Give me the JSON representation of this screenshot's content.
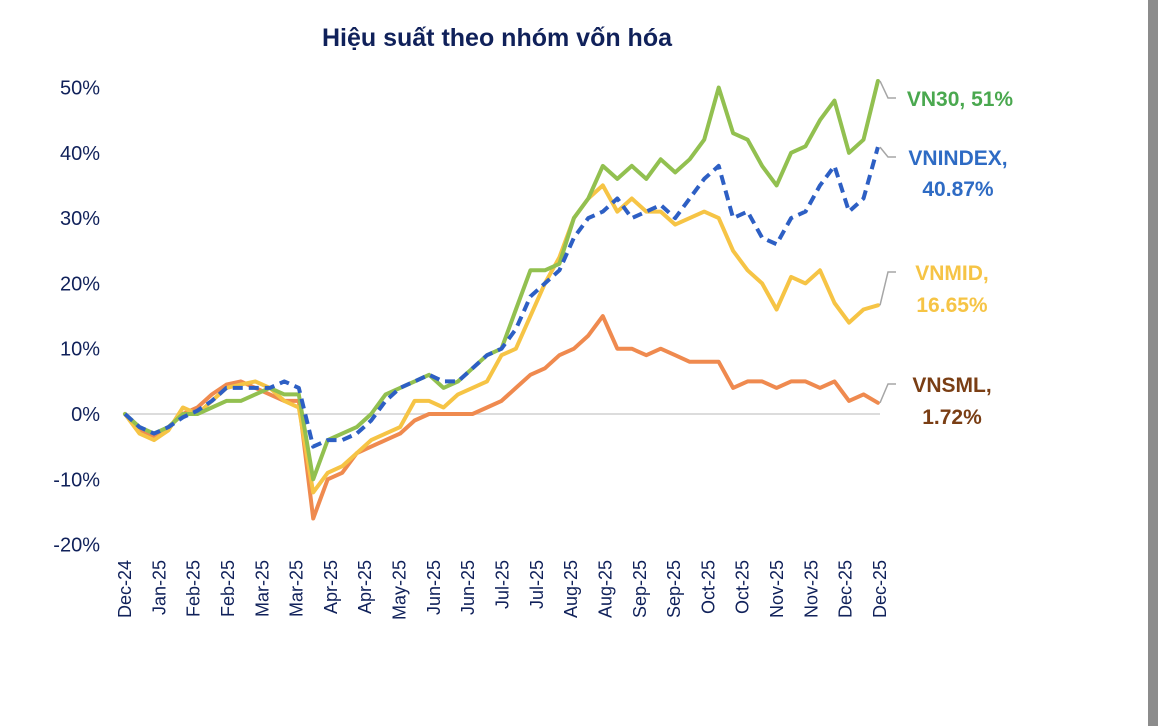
{
  "chart_data": {
    "type": "line",
    "title": "Hiệu suất theo nhóm vốn hóa",
    "xlabel": "",
    "ylabel": "",
    "ylim": [
      -20,
      50
    ],
    "y_ticks": [
      "50%",
      "40%",
      "30%",
      "20%",
      "10%",
      "0%",
      "-10%",
      "-20%"
    ],
    "y_tick_values": [
      50,
      40,
      30,
      20,
      10,
      0,
      -10,
      -20
    ],
    "x_tick_labels": [
      "Dec-24",
      "Jan-25",
      "Feb-25",
      "Feb-25",
      "Mar-25",
      "Mar-25",
      "Apr-25",
      "Apr-25",
      "May-25",
      "Jun-25",
      "Jun-25",
      "Jul-25",
      "Jul-25",
      "Aug-25",
      "Aug-25",
      "Sep-25",
      "Sep-25",
      "Oct-25",
      "Oct-25",
      "Nov-25",
      "Nov-25",
      "Dec-25",
      "Dec-25"
    ],
    "x_range": [
      "2024-12-31",
      "2025-12-31"
    ],
    "grid": false,
    "zero_line": true,
    "x": [
      "2024-12-31",
      "2025-01-07",
      "2025-01-14",
      "2025-01-21",
      "2025-01-28",
      "2025-02-04",
      "2025-02-11",
      "2025-02-18",
      "2025-02-25",
      "2025-03-04",
      "2025-03-11",
      "2025-03-18",
      "2025-03-25",
      "2025-04-01",
      "2025-04-08",
      "2025-04-15",
      "2025-04-22",
      "2025-04-29",
      "2025-05-06",
      "2025-05-13",
      "2025-05-20",
      "2025-05-27",
      "2025-06-03",
      "2025-06-10",
      "2025-06-17",
      "2025-06-24",
      "2025-07-01",
      "2025-07-08",
      "2025-07-15",
      "2025-07-22",
      "2025-07-29",
      "2025-08-05",
      "2025-08-12",
      "2025-08-19",
      "2025-08-26",
      "2025-09-02",
      "2025-09-09",
      "2025-09-16",
      "2025-09-23",
      "2025-09-30",
      "2025-10-07",
      "2025-10-14",
      "2025-10-21",
      "2025-10-28",
      "2025-11-04",
      "2025-11-11",
      "2025-11-18",
      "2025-11-25",
      "2025-12-02",
      "2025-12-09",
      "2025-12-16",
      "2025-12-23",
      "2025-12-30"
    ],
    "series": [
      {
        "name": "VN30",
        "label": "VN30, 51%",
        "color": "#92c050",
        "label_color": "#4aa84f",
        "dashed": false,
        "values": [
          0,
          -2,
          -3,
          -2,
          0,
          0,
          1,
          2,
          2,
          3,
          4,
          3,
          3,
          -10,
          -4,
          -3,
          -2,
          0,
          3,
          4,
          5,
          6,
          4,
          5,
          7,
          9,
          10,
          16,
          22,
          22,
          23,
          30,
          33,
          38,
          36,
          38,
          36,
          39,
          37,
          39,
          42,
          50,
          43,
          42,
          38,
          35,
          40,
          41,
          45,
          48,
          40,
          42,
          51
        ]
      },
      {
        "name": "VNINDEX",
        "label": "VNINDEX,",
        "label2": "40.87%",
        "color": "#2d5fc4",
        "label_color": "#2e6bc4",
        "dashed": true,
        "values": [
          0,
          -2,
          -3,
          -2,
          -0.5,
          0.5,
          2,
          4,
          4,
          4,
          4,
          5,
          4,
          -5,
          -4,
          -4,
          -3,
          -1,
          2,
          4,
          5,
          6,
          5,
          5,
          7,
          9,
          10,
          13,
          18,
          20,
          22,
          27,
          30,
          31,
          33,
          30,
          31,
          32,
          30,
          33,
          36,
          38,
          30,
          31,
          27,
          26,
          30,
          31,
          35,
          38,
          31,
          33,
          40.87
        ]
      },
      {
        "name": "VNMID",
        "label": "VNMID,",
        "label2": "16.65%",
        "color": "#f6c445",
        "label_color": "#f6c445",
        "dashed": false,
        "values": [
          0,
          -3,
          -4,
          -2.5,
          1,
          0,
          2,
          4,
          4.5,
          5,
          4,
          2,
          1,
          -12,
          -9,
          -8,
          -6,
          -4,
          -3,
          -2,
          2,
          2,
          1,
          3,
          4,
          5,
          9,
          10,
          15,
          20,
          24,
          30,
          33,
          35,
          31,
          33,
          31,
          31,
          29,
          30,
          31,
          30,
          25,
          22,
          20,
          16,
          21,
          20,
          22,
          17,
          14,
          16,
          16.65
        ]
      },
      {
        "name": "VNSML",
        "label": "VNSML,",
        "label2": "1.72%",
        "color": "#ef8a4f",
        "label_color": "#7a3e14",
        "dashed": false,
        "values": [
          0,
          -2.5,
          -3.5,
          -2,
          0,
          1,
          3,
          4.5,
          5,
          4,
          3,
          2,
          2,
          -16,
          -10,
          -9,
          -6,
          -5,
          -4,
          -3,
          -1,
          0,
          0,
          0,
          0,
          1,
          2,
          4,
          6,
          7,
          9,
          10,
          12,
          15,
          10,
          10,
          9,
          10,
          9,
          8,
          8,
          8,
          4,
          5,
          5,
          4,
          5,
          5,
          4,
          5,
          2,
          3,
          1.72
        ]
      }
    ]
  }
}
